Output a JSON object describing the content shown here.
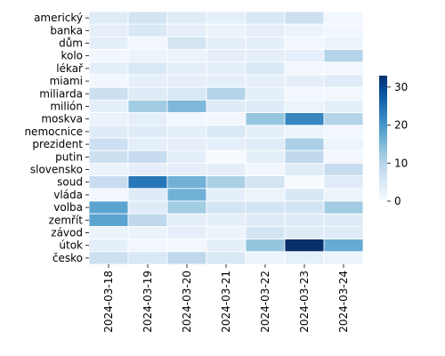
{
  "chart_data": {
    "type": "heatmap",
    "title": "",
    "xlabel": "",
    "ylabel": "",
    "rows": [
      "americký",
      "banka",
      "dům",
      "kolo",
      "lékař",
      "miami",
      "miliarda",
      "milión",
      "moskva",
      "nemocnice",
      "prezident",
      "putin",
      "slovensko",
      "soud",
      "vláda",
      "volba",
      "zemřít",
      "závod",
      "útok",
      "česko"
    ],
    "columns": [
      "2024-03-18",
      "2024-03-19",
      "2024-03-20",
      "2024-03-21",
      "2024-03-22",
      "2024-03-23",
      "2024-03-24"
    ],
    "values": [
      [
        4,
        6,
        4,
        3,
        5,
        7,
        1
      ],
      [
        3,
        5,
        3,
        2,
        3,
        2,
        1
      ],
      [
        3,
        1,
        6,
        3,
        3,
        1,
        2
      ],
      [
        1,
        2,
        2,
        3,
        3,
        3,
        10
      ],
      [
        3,
        5,
        3,
        3,
        5,
        1,
        1
      ],
      [
        1,
        3,
        3,
        3,
        3,
        3,
        4
      ],
      [
        7,
        4,
        5,
        10,
        3,
        1,
        1
      ],
      [
        3,
        12,
        15,
        4,
        4,
        2,
        3
      ],
      [
        2,
        3,
        1,
        1,
        13,
        22,
        10
      ],
      [
        4,
        4,
        3,
        5,
        3,
        2,
        1
      ],
      [
        7,
        3,
        3,
        3,
        4,
        11,
        2
      ],
      [
        7,
        8,
        3,
        0,
        3,
        9,
        1
      ],
      [
        2,
        3,
        3,
        3,
        1,
        4,
        8
      ],
      [
        8,
        24,
        16,
        11,
        6,
        0,
        4
      ],
      [
        1,
        4,
        16,
        3,
        2,
        5,
        2
      ],
      [
        18,
        4,
        12,
        6,
        6,
        6,
        12
      ],
      [
        18,
        9,
        3,
        3,
        4,
        4,
        4
      ],
      [
        2,
        2,
        3,
        2,
        6,
        4,
        4
      ],
      [
        3,
        1,
        1,
        3,
        13,
        33,
        17
      ],
      [
        7,
        5,
        9,
        5,
        2,
        3,
        2
      ]
    ],
    "vmin": 0,
    "vmax": 33,
    "colorbar_ticks": [
      "0",
      "10",
      "20",
      "30"
    ],
    "colormap": [
      "#f7fbff",
      "#deebf7",
      "#c6dbef",
      "#9ecae1",
      "#6baed6",
      "#4292c6",
      "#2171b5",
      "#08519c",
      "#08306b"
    ]
  }
}
